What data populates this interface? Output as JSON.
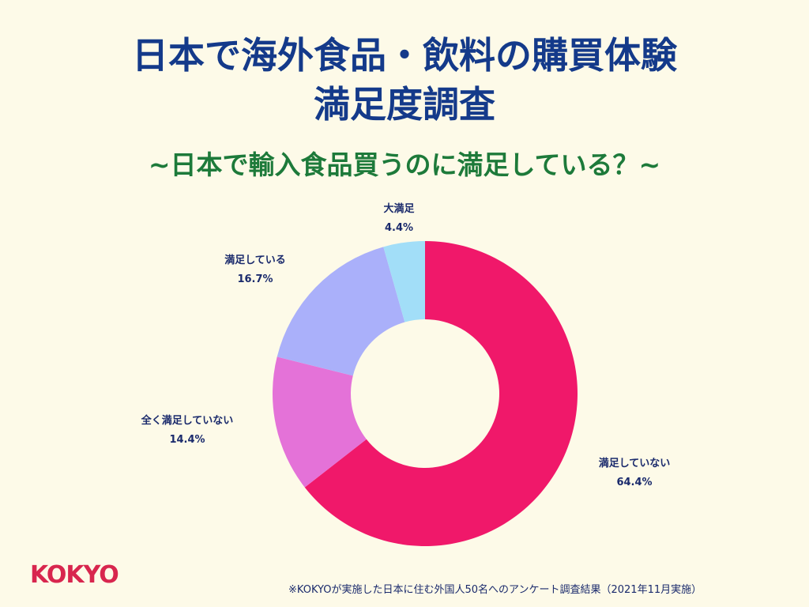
{
  "title_line1": "日本で海外食品・飲料の購買体験",
  "title_line2": "満足度調査",
  "subtitle": "~日本で輸入食品買うのに満足している？~",
  "footnote": "※KOKYOが実施した日本に住む外国人50名へのアンケート調査結果（2021年11月実施）",
  "logo_text": "KOKYO",
  "chart_data": {
    "type": "pie",
    "donut": true,
    "start": "top",
    "direction": "clockwise",
    "slices": [
      {
        "label": "満足していない",
        "value": 64.4,
        "display": "64.4%",
        "color": "#f0186a"
      },
      {
        "label": "全く満足していない",
        "value": 14.4,
        "display": "14.4%",
        "color": "#e472d8"
      },
      {
        "label": "満足している",
        "value": 16.7,
        "display": "16.7%",
        "color": "#aab0fa"
      },
      {
        "label": "大満足",
        "value": 4.4,
        "display": "4.4%",
        "color": "#a2def8"
      }
    ]
  }
}
